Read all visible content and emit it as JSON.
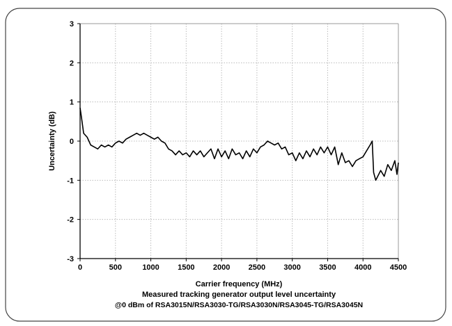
{
  "chart_data": {
    "type": "line",
    "title": "Measured tracking generator output level uncertainty",
    "subtitle": "@0 dBm of RSA3015N/RSA3030-TG/RSA3030N/RSA3045-TG/RSA3045N",
    "x_label": "Carrier frequency (MHz)",
    "y_label": "Uncertainty (dB)",
    "x": [
      0,
      20,
      50,
      100,
      150,
      200,
      250,
      300,
      350,
      400,
      450,
      500,
      550,
      600,
      650,
      700,
      750,
      800,
      850,
      900,
      950,
      1000,
      1050,
      1100,
      1150,
      1200,
      1250,
      1300,
      1350,
      1400,
      1450,
      1500,
      1550,
      1600,
      1650,
      1700,
      1750,
      1800,
      1850,
      1900,
      1950,
      2000,
      2050,
      2100,
      2150,
      2200,
      2250,
      2300,
      2350,
      2400,
      2450,
      2500,
      2550,
      2600,
      2650,
      2700,
      2750,
      2800,
      2850,
      2900,
      2950,
      3000,
      3050,
      3100,
      3150,
      3200,
      3250,
      3300,
      3350,
      3400,
      3450,
      3500,
      3550,
      3600,
      3650,
      3700,
      3750,
      3800,
      3850,
      3900,
      3950,
      4000,
      4050,
      4100,
      4130,
      4150,
      4180,
      4250,
      4300,
      4350,
      4400,
      4450,
      4480,
      4500
    ],
    "values": [
      0.85,
      0.6,
      0.2,
      0.1,
      -0.1,
      -0.15,
      -0.2,
      -0.1,
      -0.15,
      -0.1,
      -0.15,
      -0.05,
      0,
      -0.05,
      0.05,
      0.1,
      0.15,
      0.2,
      0.15,
      0.2,
      0.15,
      0.1,
      0.05,
      0.1,
      0,
      -0.05,
      -0.2,
      -0.25,
      -0.35,
      -0.25,
      -0.35,
      -0.3,
      -0.4,
      -0.25,
      -0.35,
      -0.25,
      -0.4,
      -0.3,
      -0.2,
      -0.45,
      -0.2,
      -0.4,
      -0.25,
      -0.45,
      -0.2,
      -0.35,
      -0.3,
      -0.45,
      -0.25,
      -0.4,
      -0.2,
      -0.3,
      -0.15,
      -0.1,
      0,
      -0.05,
      -0.1,
      -0.05,
      -0.2,
      -0.15,
      -0.35,
      -0.3,
      -0.5,
      -0.3,
      -0.45,
      -0.25,
      -0.4,
      -0.2,
      -0.35,
      -0.15,
      -0.3,
      -0.15,
      -0.35,
      -0.15,
      -0.6,
      -0.3,
      -0.55,
      -0.5,
      -0.65,
      -0.5,
      -0.45,
      -0.4,
      -0.25,
      -0.1,
      0,
      -0.8,
      -1.0,
      -0.75,
      -0.9,
      -0.6,
      -0.75,
      -0.5,
      -0.85,
      -0.55
    ],
    "color": "#000000",
    "xlim": [
      0,
      4500
    ],
    "xticks": [
      0,
      500,
      1000,
      1500,
      2000,
      2500,
      3000,
      3500,
      4000,
      4500
    ],
    "ylim": [
      -3,
      3
    ],
    "yticks": [
      -3,
      -2,
      -1,
      0,
      1,
      2,
      3
    ],
    "grid": true
  }
}
